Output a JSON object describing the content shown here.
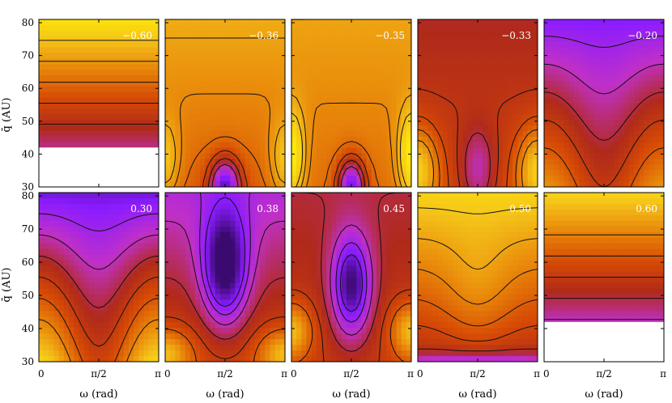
{
  "chart_data": {
    "type": "heatmap",
    "layout": "2 rows x 5 columns",
    "x": {
      "label": "ω (rad)",
      "ticks": [
        "0",
        "π/2",
        "π"
      ],
      "range": [
        0,
        3.14159
      ]
    },
    "y": {
      "label": "q̄ (AU)",
      "ticks": [
        30,
        40,
        50,
        60,
        70,
        80
      ],
      "range": [
        30,
        81
      ]
    },
    "colormap": [
      "#3a0a6e",
      "#8a1cff",
      "#c030c8",
      "#b02a1a",
      "#d64a05",
      "#e8860a",
      "#f5c61a",
      "#fff200"
    ],
    "panels": [
      {
        "label": "−0.60",
        "pattern": "bands",
        "mode": "bands",
        "blank_below": 42
      },
      {
        "label": "−0.36",
        "pattern": "ridge",
        "mode": "ridge"
      },
      {
        "label": "−0.35",
        "pattern": "ridge-strong",
        "mode": "ridge2"
      },
      {
        "label": "−0.33",
        "pattern": "x-shape",
        "mode": "xshape"
      },
      {
        "label": "−0.20",
        "pattern": "trough",
        "mode": "trough"
      },
      {
        "label": "0.30",
        "pattern": "trough",
        "mode": "trough2"
      },
      {
        "label": "0.38",
        "pattern": "island",
        "mode": "island"
      },
      {
        "label": "0.45",
        "pattern": "island-x",
        "mode": "island2"
      },
      {
        "label": "0.50",
        "pattern": "arch",
        "mode": "arch"
      },
      {
        "label": "0.60",
        "pattern": "bands",
        "mode": "bands2",
        "blank_below": 42
      }
    ]
  }
}
